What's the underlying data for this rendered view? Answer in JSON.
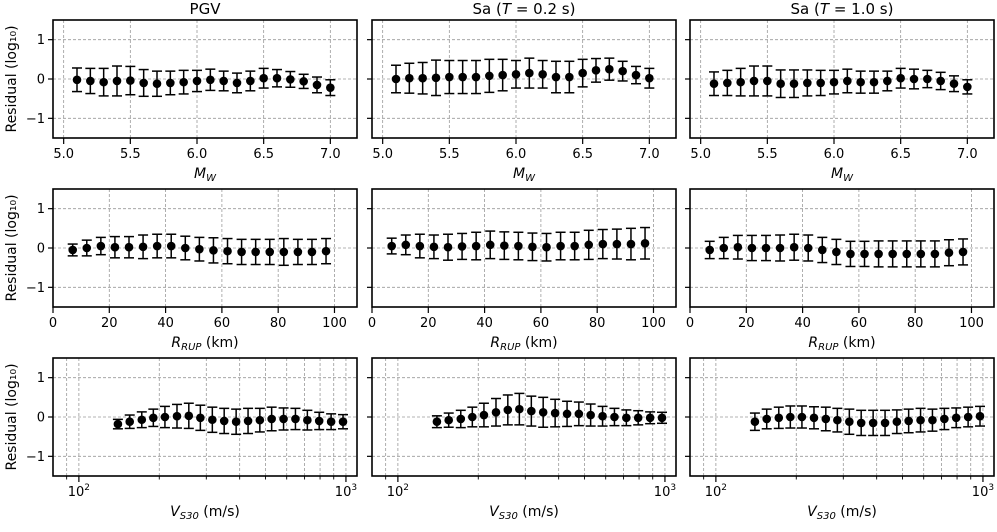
{
  "chart_data": [
    {
      "id": "p11",
      "type": "scatter",
      "title": "PGV",
      "xlabel": "M_W",
      "ylabel": "Residual (log₁₀)",
      "xscale": "linear",
      "xlim": [
        4.92,
        7.2
      ],
      "ylim": [
        -1.5,
        1.5
      ],
      "xticks": [
        5.0,
        5.5,
        6.0,
        6.5,
        7.0
      ],
      "xticklabels": [
        "5.0",
        "5.5",
        "6.0",
        "6.5",
        "7.0"
      ],
      "yticks": [
        -1,
        0,
        1
      ],
      "yticklabels": [
        "−1",
        "0",
        "1"
      ],
      "grid": true,
      "x": [
        5.1,
        5.2,
        5.3,
        5.4,
        5.5,
        5.6,
        5.7,
        5.8,
        5.9,
        6.0,
        6.1,
        6.2,
        6.3,
        6.4,
        6.5,
        6.6,
        6.7,
        6.8,
        6.9,
        7.0
      ],
      "y": [
        -0.02,
        -0.05,
        -0.08,
        -0.05,
        -0.04,
        -0.1,
        -0.12,
        -0.1,
        -0.08,
        -0.05,
        -0.02,
        -0.05,
        -0.1,
        -0.05,
        0.02,
        0.02,
        -0.01,
        -0.06,
        -0.15,
        -0.22
      ],
      "err": [
        0.3,
        0.32,
        0.35,
        0.38,
        0.36,
        0.34,
        0.32,
        0.3,
        0.3,
        0.27,
        0.27,
        0.25,
        0.25,
        0.25,
        0.25,
        0.22,
        0.2,
        0.18,
        0.2,
        0.2
      ]
    },
    {
      "id": "p12",
      "type": "scatter",
      "title": "Sa (T = 0.2 s)",
      "title_parts": [
        "Sa (",
        "T",
        " = 0.2 s)"
      ],
      "xlabel": "M_W",
      "ylabel": "",
      "xscale": "linear",
      "xlim": [
        4.92,
        7.2
      ],
      "ylim": [
        -1.5,
        1.5
      ],
      "xticks": [
        5.0,
        5.5,
        6.0,
        6.5,
        7.0
      ],
      "xticklabels": [
        "5.0",
        "5.5",
        "6.0",
        "6.5",
        "7.0"
      ],
      "yticks": [
        -1,
        0,
        1
      ],
      "yticklabels": [
        "",
        "",
        ""
      ],
      "grid": true,
      "x": [
        5.1,
        5.2,
        5.3,
        5.4,
        5.5,
        5.6,
        5.7,
        5.8,
        5.9,
        6.0,
        6.1,
        6.2,
        6.3,
        6.4,
        6.5,
        6.6,
        6.7,
        6.8,
        6.9,
        7.0
      ],
      "y": [
        0.0,
        0.02,
        0.02,
        0.03,
        0.05,
        0.05,
        0.05,
        0.08,
        0.1,
        0.12,
        0.15,
        0.12,
        0.05,
        0.05,
        0.15,
        0.22,
        0.25,
        0.2,
        0.1,
        0.02
      ],
      "err": [
        0.35,
        0.38,
        0.4,
        0.45,
        0.42,
        0.42,
        0.42,
        0.42,
        0.4,
        0.35,
        0.38,
        0.35,
        0.4,
        0.4,
        0.35,
        0.3,
        0.28,
        0.25,
        0.22,
        0.25
      ]
    },
    {
      "id": "p13",
      "type": "scatter",
      "title": "Sa (T = 1.0 s)",
      "title_parts": [
        "Sa (",
        "T",
        " = 1.0 s)"
      ],
      "xlabel": "M_W",
      "ylabel": "",
      "xscale": "linear",
      "xlim": [
        4.92,
        7.2
      ],
      "ylim": [
        -1.5,
        1.5
      ],
      "xticks": [
        5.0,
        5.5,
        6.0,
        6.5,
        7.0
      ],
      "xticklabels": [
        "5.0",
        "5.5",
        "6.0",
        "6.5",
        "7.0"
      ],
      "yticks": [
        -1,
        0,
        1
      ],
      "yticklabels": [
        "",
        "",
        ""
      ],
      "grid": true,
      "x": [
        5.1,
        5.2,
        5.3,
        5.4,
        5.5,
        5.6,
        5.7,
        5.8,
        5.9,
        6.0,
        6.1,
        6.2,
        6.3,
        6.4,
        6.5,
        6.6,
        6.7,
        6.8,
        6.9,
        7.0
      ],
      "y": [
        -0.12,
        -0.1,
        -0.08,
        -0.05,
        -0.05,
        -0.12,
        -0.12,
        -0.1,
        -0.1,
        -0.08,
        -0.05,
        -0.08,
        -0.08,
        -0.05,
        0.02,
        0.0,
        0.0,
        -0.05,
        -0.12,
        -0.2
      ],
      "err": [
        0.3,
        0.32,
        0.35,
        0.38,
        0.38,
        0.35,
        0.35,
        0.33,
        0.32,
        0.3,
        0.3,
        0.28,
        0.28,
        0.25,
        0.25,
        0.25,
        0.22,
        0.22,
        0.2,
        0.18
      ]
    },
    {
      "id": "p21",
      "type": "scatter",
      "title": "",
      "xlabel": "R_RUP (km)",
      "ylabel": "Residual (log₁₀)",
      "xscale": "linear",
      "xlim": [
        0,
        108
      ],
      "ylim": [
        -1.5,
        1.5
      ],
      "xticks": [
        0,
        20,
        40,
        60,
        80,
        100
      ],
      "xticklabels": [
        "0",
        "20",
        "40",
        "60",
        "80",
        "100"
      ],
      "yticks": [
        -1,
        0,
        1
      ],
      "yticklabels": [
        "−1",
        "0",
        "1"
      ],
      "grid": true,
      "x": [
        7,
        12,
        17,
        22,
        27,
        32,
        37,
        42,
        47,
        52,
        57,
        62,
        67,
        72,
        77,
        82,
        87,
        92,
        97
      ],
      "y": [
        -0.05,
        0.0,
        0.05,
        0.02,
        0.02,
        0.03,
        0.05,
        0.05,
        0.0,
        -0.03,
        -0.06,
        -0.08,
        -0.1,
        -0.1,
        -0.1,
        -0.1,
        -0.1,
        -0.1,
        -0.08
      ],
      "err": [
        0.15,
        0.2,
        0.22,
        0.27,
        0.27,
        0.3,
        0.3,
        0.3,
        0.3,
        0.3,
        0.32,
        0.32,
        0.32,
        0.32,
        0.32,
        0.34,
        0.32,
        0.32,
        0.32
      ]
    },
    {
      "id": "p22",
      "type": "scatter",
      "title": "",
      "xlabel": "R_RUP (km)",
      "ylabel": "",
      "xscale": "linear",
      "xlim": [
        0,
        108
      ],
      "ylim": [
        -1.5,
        1.5
      ],
      "xticks": [
        0,
        20,
        40,
        60,
        80,
        100
      ],
      "xticklabels": [
        "0",
        "20",
        "40",
        "60",
        "80",
        "100"
      ],
      "yticks": [
        -1,
        0,
        1
      ],
      "yticklabels": [
        "",
        "",
        ""
      ],
      "grid": true,
      "x": [
        7,
        12,
        17,
        22,
        27,
        32,
        37,
        42,
        47,
        52,
        57,
        62,
        67,
        72,
        77,
        82,
        87,
        92,
        97
      ],
      "y": [
        0.05,
        0.08,
        0.05,
        0.03,
        0.02,
        0.04,
        0.05,
        0.08,
        0.06,
        0.05,
        0.03,
        0.02,
        0.05,
        0.05,
        0.08,
        0.1,
        0.1,
        0.1,
        0.12
      ],
      "err": [
        0.2,
        0.25,
        0.3,
        0.3,
        0.33,
        0.33,
        0.35,
        0.35,
        0.35,
        0.35,
        0.35,
        0.35,
        0.35,
        0.35,
        0.37,
        0.37,
        0.38,
        0.4,
        0.4
      ]
    },
    {
      "id": "p23",
      "type": "scatter",
      "title": "",
      "xlabel": "R_RUP (km)",
      "ylabel": "",
      "xscale": "linear",
      "xlim": [
        0,
        108
      ],
      "ylim": [
        -1.5,
        1.5
      ],
      "xticks": [
        0,
        20,
        40,
        60,
        80,
        100
      ],
      "xticklabels": [
        "0",
        "20",
        "40",
        "60",
        "80",
        "100"
      ],
      "yticks": [
        -1,
        0,
        1
      ],
      "yticklabels": [
        "",
        "",
        ""
      ],
      "grid": true,
      "x": [
        7,
        12,
        17,
        22,
        27,
        32,
        37,
        42,
        47,
        52,
        57,
        62,
        67,
        72,
        77,
        82,
        87,
        92,
        97
      ],
      "y": [
        -0.05,
        0.0,
        0.02,
        0.0,
        0.0,
        0.0,
        0.02,
        0.0,
        -0.05,
        -0.1,
        -0.15,
        -0.15,
        -0.15,
        -0.15,
        -0.15,
        -0.15,
        -0.15,
        -0.12,
        -0.1
      ],
      "err": [
        0.22,
        0.27,
        0.3,
        0.32,
        0.32,
        0.33,
        0.33,
        0.33,
        0.32,
        0.32,
        0.32,
        0.32,
        0.33,
        0.33,
        0.33,
        0.33,
        0.33,
        0.33,
        0.33
      ]
    },
    {
      "id": "p31",
      "type": "scatter",
      "title": "",
      "xlabel": "V_S30 (m/s)",
      "ylabel": "Residual (log₁₀)",
      "xscale": "log",
      "xlim": [
        80,
        1100
      ],
      "ylim": [
        -1.5,
        1.5
      ],
      "xticks": [
        100,
        1000
      ],
      "xticklabels": [
        "10^2",
        "10^3"
      ],
      "yticks": [
        -1,
        0,
        1
      ],
      "yticklabels": [
        "−1",
        "0",
        "1"
      ],
      "grid": true,
      "x": [
        140,
        155,
        172,
        190,
        210,
        233,
        258,
        285,
        316,
        350,
        388,
        430,
        476,
        527,
        584,
        647,
        717,
        794,
        880,
        975
      ],
      "y": [
        -0.18,
        -0.12,
        -0.07,
        -0.02,
        0.0,
        0.02,
        0.03,
        -0.02,
        -0.07,
        -0.1,
        -0.12,
        -0.1,
        -0.08,
        -0.05,
        -0.05,
        -0.05,
        -0.08,
        -0.1,
        -0.12,
        -0.12
      ],
      "err": [
        0.12,
        0.17,
        0.2,
        0.22,
        0.27,
        0.3,
        0.32,
        0.32,
        0.32,
        0.32,
        0.32,
        0.32,
        0.3,
        0.3,
        0.28,
        0.27,
        0.25,
        0.22,
        0.2,
        0.18
      ]
    },
    {
      "id": "p32",
      "type": "scatter",
      "title": "",
      "xlabel": "V_S30 (m/s)",
      "ylabel": "",
      "xscale": "log",
      "xlim": [
        80,
        1100
      ],
      "ylim": [
        -1.5,
        1.5
      ],
      "xticks": [
        100,
        1000
      ],
      "xticklabels": [
        "10^2",
        "10^3"
      ],
      "yticks": [
        -1,
        0,
        1
      ],
      "yticklabels": [
        "",
        "",
        ""
      ],
      "grid": true,
      "x": [
        140,
        155,
        172,
        190,
        210,
        233,
        258,
        285,
        316,
        350,
        388,
        430,
        476,
        527,
        584,
        647,
        717,
        794,
        880,
        975
      ],
      "y": [
        -0.12,
        -0.08,
        -0.05,
        0.0,
        0.05,
        0.12,
        0.18,
        0.2,
        0.15,
        0.12,
        0.1,
        0.08,
        0.08,
        0.05,
        0.02,
        0.0,
        -0.02,
        -0.02,
        -0.02,
        -0.02
      ],
      "err": [
        0.15,
        0.18,
        0.22,
        0.25,
        0.3,
        0.35,
        0.38,
        0.4,
        0.38,
        0.38,
        0.35,
        0.32,
        0.3,
        0.28,
        0.25,
        0.22,
        0.2,
        0.18,
        0.15,
        0.14
      ]
    },
    {
      "id": "p33",
      "type": "scatter",
      "title": "",
      "xlabel": "V_S30 (m/s)",
      "ylabel": "",
      "xscale": "log",
      "xlim": [
        80,
        1100
      ],
      "ylim": [
        -1.5,
        1.5
      ],
      "xticks": [
        100,
        1000
      ],
      "xticklabels": [
        "10^2",
        "10^3"
      ],
      "yticks": [
        -1,
        0,
        1
      ],
      "yticklabels": [
        "",
        "",
        ""
      ],
      "grid": true,
      "x": [
        140,
        155,
        172,
        190,
        210,
        233,
        258,
        285,
        316,
        350,
        388,
        430,
        476,
        527,
        584,
        647,
        717,
        794,
        880,
        975
      ],
      "y": [
        -0.12,
        -0.05,
        -0.02,
        0.0,
        0.0,
        -0.02,
        -0.05,
        -0.08,
        -0.12,
        -0.15,
        -0.15,
        -0.15,
        -0.12,
        -0.1,
        -0.08,
        -0.08,
        -0.05,
        -0.02,
        0.0,
        0.02
      ],
      "err": [
        0.22,
        0.25,
        0.27,
        0.28,
        0.28,
        0.28,
        0.3,
        0.3,
        0.32,
        0.32,
        0.32,
        0.32,
        0.3,
        0.3,
        0.3,
        0.28,
        0.27,
        0.25,
        0.25,
        0.25
      ]
    }
  ]
}
